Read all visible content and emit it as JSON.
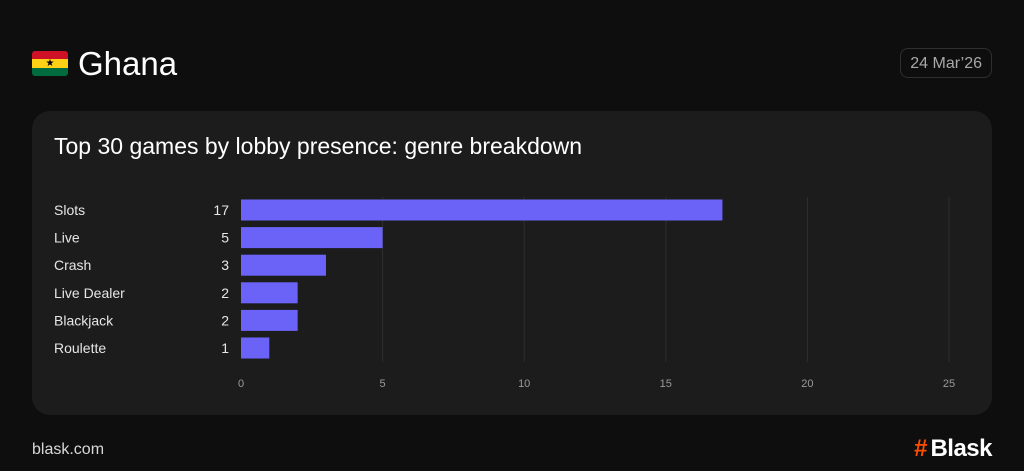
{
  "header": {
    "country": "Ghana",
    "date": "24 Mar’26",
    "flag_colors": [
      "#ce1126",
      "#fcd116",
      "#006b3f"
    ],
    "flag_star": "★"
  },
  "card": {
    "title": "Top 30 games by lobby presence: genre breakdown"
  },
  "chart_data": {
    "type": "bar",
    "orientation": "horizontal",
    "title": "Top 30 games by lobby presence: genre breakdown",
    "categories": [
      "Slots",
      "Live",
      "Crash",
      "Live Dealer",
      "Blackjack",
      "Roulette"
    ],
    "values": [
      17,
      5,
      3,
      2,
      2,
      1
    ],
    "xlim": [
      0,
      25
    ],
    "xticks": [
      0,
      5,
      10,
      15,
      20,
      25
    ],
    "grid": "vertical",
    "bar_color": "#6b63f7",
    "legend": "none"
  },
  "footer": {
    "site": "blask.com",
    "brand_mark": "#",
    "brand_name": "Blask",
    "brand_color": "#ff4d00"
  }
}
